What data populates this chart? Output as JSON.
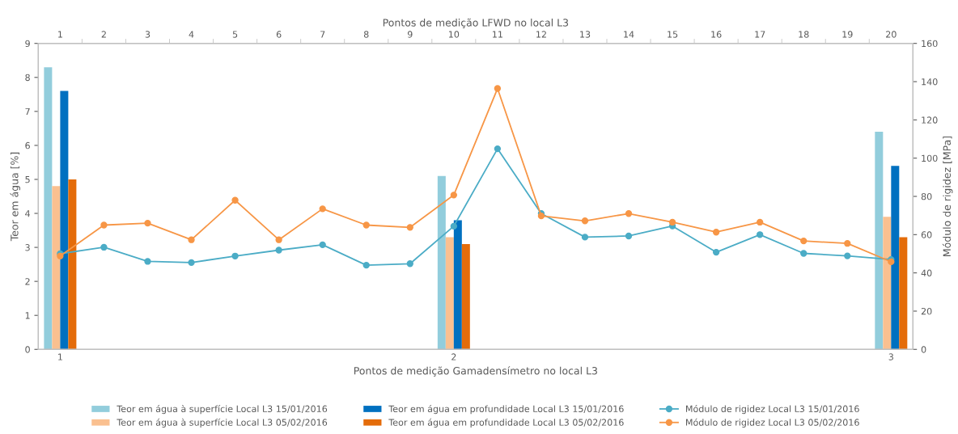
{
  "chart_data": {
    "type": "bar",
    "xlabel": "Pontos de medição Gamadensímetro no local L3",
    "ylabel": "Teor em água [%]",
    "y2label": "Módulo de rigidez [MPa]",
    "x2label": "Pontos de medição LFWD no local L3",
    "categories": [
      "1",
      null,
      null,
      null,
      null,
      null,
      null,
      null,
      null,
      "2",
      null,
      null,
      null,
      null,
      null,
      null,
      null,
      null,
      null,
      "3"
    ],
    "ylim": [
      0,
      9
    ],
    "yticks": [
      0,
      1,
      2,
      3,
      4,
      5,
      6,
      7,
      8,
      9
    ],
    "y2lim": [
      0,
      160
    ],
    "y2ticks": [
      0,
      20,
      40,
      60,
      80,
      100,
      120,
      140,
      160
    ],
    "x2lim": [
      0.5,
      20.5
    ],
    "x2ticks": [
      1,
      2,
      3,
      4,
      5,
      6,
      7,
      8,
      9,
      10,
      11,
      12,
      13,
      14,
      15,
      16,
      17,
      18,
      19,
      20
    ],
    "grid": false,
    "legend": "bottom",
    "series": [
      {
        "name": "Teor em água à superfície Local L3 15/01/2016",
        "color": "#92cddc",
        "values": [
          8.3,
          null,
          null,
          null,
          null,
          null,
          null,
          null,
          null,
          5.1,
          null,
          null,
          null,
          null,
          null,
          null,
          null,
          null,
          null,
          6.4
        ]
      },
      {
        "name": "Teor em água à superfície Local L3 05/02/2016",
        "color": "#fac090",
        "values": [
          4.8,
          null,
          null,
          null,
          null,
          null,
          null,
          null,
          null,
          3.3,
          null,
          null,
          null,
          null,
          null,
          null,
          null,
          null,
          null,
          3.9
        ]
      },
      {
        "name": "Teor em água em profundidade Local L3 15/01/2016",
        "color": "#0070c0",
        "values": [
          7.6,
          null,
          null,
          null,
          null,
          null,
          null,
          null,
          null,
          3.8,
          null,
          null,
          null,
          null,
          null,
          null,
          null,
          null,
          null,
          5.4
        ]
      },
      {
        "name": "Teor em água em profundidade Local L3 05/02/2016",
        "color": "#e46c0a",
        "values": [
          5.0,
          null,
          null,
          null,
          null,
          null,
          null,
          null,
          null,
          3.1,
          null,
          null,
          null,
          null,
          null,
          null,
          null,
          null,
          null,
          3.3
        ]
      },
      {
        "name": "Módulo de rigidez Local L3 15/01/2016",
        "color": "#4bacc6",
        "type": "line",
        "axis": "y2",
        "marker": "circle",
        "values": [
          50,
          53.4,
          46,
          45.4,
          48.8,
          51.9,
          54.7,
          44,
          44.8,
          64.4,
          104.9,
          71,
          58.7,
          59.3,
          64.5,
          50.8,
          60,
          50.2,
          48.9,
          47
        ]
      },
      {
        "name": "Módulo de rigidez Local L3 05/02/2016",
        "color": "#f79646",
        "type": "line",
        "axis": "y2",
        "marker": "circle",
        "values": [
          48.8,
          65,
          66,
          57.3,
          78,
          57.3,
          73.5,
          65,
          63.8,
          80.7,
          136.4,
          69.8,
          67.2,
          71,
          66.5,
          61.3,
          66.5,
          56.7,
          55.4,
          45.8
        ]
      }
    ]
  }
}
